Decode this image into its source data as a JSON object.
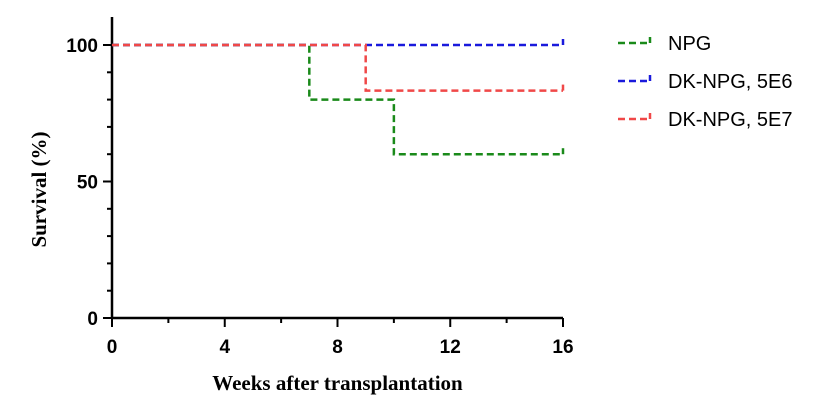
{
  "chart_data": {
    "type": "line",
    "step": true,
    "title": "",
    "xlabel": "Weeks after transplantation",
    "ylabel": "Survival (%)",
    "xlim": [
      0,
      16
    ],
    "ylim": [
      0,
      100
    ],
    "xticks": [
      0,
      4,
      8,
      12,
      16
    ],
    "yticks": [
      0,
      50,
      100
    ],
    "grid": false,
    "legend_position": "right",
    "series": [
      {
        "name": "NPG",
        "color": "#1a8a1a",
        "x": [
          0,
          7,
          7,
          10,
          10,
          16
        ],
        "y": [
          100,
          100,
          80,
          80,
          60,
          60
        ]
      },
      {
        "name": "DK-NPG, 5E6",
        "color": "#1a1adc",
        "x": [
          0,
          16
        ],
        "y": [
          100,
          100
        ]
      },
      {
        "name": "DK-NPG, 5E7",
        "color": "#f04848",
        "x": [
          0,
          9,
          9,
          16
        ],
        "y": [
          100,
          100,
          83.3,
          83.3
        ]
      }
    ]
  }
}
